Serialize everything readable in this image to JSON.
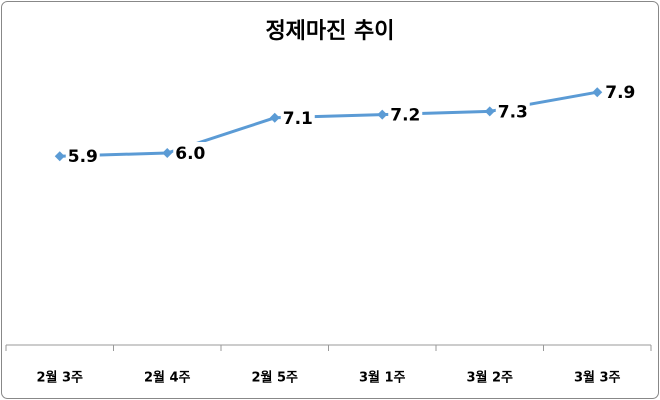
{
  "chart_data": {
    "type": "line",
    "title": "정제마진 추이",
    "categories": [
      "2월 3주",
      "2월 4주",
      "2월 5주",
      "3월 1주",
      "3월 2주",
      "3월 3주"
    ],
    "series": [
      {
        "color": "#5b9bd5",
        "values": [
          5.9,
          6.0,
          7.1,
          7.2,
          7.3,
          7.9
        ],
        "value_labels": [
          "5.9",
          "6.0",
          "7.1",
          "7.2",
          "7.3",
          "7.9"
        ]
      }
    ],
    "ylim": [
      0,
      9
    ]
  }
}
